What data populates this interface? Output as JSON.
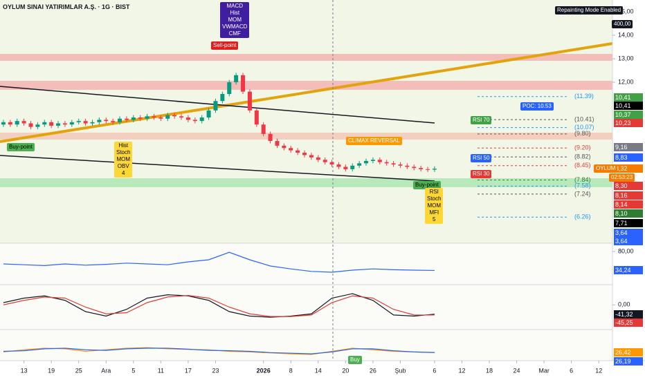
{
  "chart_data": [
    {
      "type": "candlestick",
      "title": "OYLUM SINAI YATIRIMLAR A.Ş. · 1G · BIST",
      "xlim": [
        -0.5,
        89
      ],
      "ylim": [
        5.15,
        15.5
      ],
      "xticks": [
        {
          "value": 3,
          "label": "13"
        },
        {
          "value": 7,
          "label": "19"
        },
        {
          "value": 11,
          "label": "25"
        },
        {
          "value": 15,
          "label": "Ara"
        },
        {
          "value": 19,
          "label": "5"
        },
        {
          "value": 23,
          "label": "11"
        },
        {
          "value": 27,
          "label": "17"
        },
        {
          "value": 31,
          "label": "23"
        },
        {
          "value": 38,
          "label": "2026"
        },
        {
          "value": 42,
          "label": "8"
        },
        {
          "value": 46,
          "label": "14"
        },
        {
          "value": 50,
          "label": "20"
        },
        {
          "value": 54,
          "label": "26"
        },
        {
          "value": 58,
          "label": "Şub"
        },
        {
          "value": 63,
          "label": "6"
        },
        {
          "value": 67,
          "label": "12"
        },
        {
          "value": 71,
          "label": "18"
        },
        {
          "value": 75,
          "label": "24"
        },
        {
          "value": 79,
          "label": "Mar"
        },
        {
          "value": 83,
          "label": "6"
        },
        {
          "value": 87,
          "label": "12"
        }
      ],
      "yticks": [
        {
          "value": 15,
          "label": "15,00"
        },
        {
          "value": 14,
          "label": "14,00"
        },
        {
          "value": 13,
          "label": "13,00"
        },
        {
          "value": 12,
          "label": "12,00"
        }
      ],
      "grid": false,
      "up_color": "#089981",
      "down_color": "#f23645",
      "open": [
        10.2,
        10.3,
        10.2,
        10.35,
        10.25,
        10.1,
        10.2,
        10.3,
        10.15,
        10.25,
        10.2,
        10.3,
        10.35,
        10.25,
        10.3,
        10.4,
        10.35,
        10.3,
        10.45,
        10.4,
        10.5,
        10.45,
        10.55,
        10.5,
        10.45,
        10.6,
        10.55,
        10.5,
        10.4,
        10.35,
        10.5,
        10.8,
        11.2,
        11.5,
        12.0,
        12.3,
        11.6,
        10.8,
        10.2,
        9.8,
        9.5,
        9.3,
        9.2,
        9.1,
        9.0,
        8.9,
        8.8,
        8.7,
        8.6,
        8.5,
        8.4,
        8.3,
        8.45,
        8.55,
        8.65,
        8.7,
        8.6,
        8.55,
        8.5,
        8.45,
        8.4,
        8.35,
        8.3,
        8.28
      ],
      "high": [
        10.4,
        10.4,
        10.45,
        10.45,
        10.35,
        10.3,
        10.4,
        10.4,
        10.35,
        10.35,
        10.4,
        10.45,
        10.45,
        10.4,
        10.5,
        10.5,
        10.45,
        10.55,
        10.55,
        10.6,
        10.6,
        10.65,
        10.65,
        10.6,
        10.7,
        10.7,
        10.65,
        10.6,
        10.5,
        10.6,
        10.9,
        11.3,
        11.6,
        12.1,
        12.4,
        12.4,
        11.7,
        10.9,
        10.3,
        9.9,
        9.6,
        9.4,
        9.3,
        9.2,
        9.1,
        9.0,
        8.9,
        8.8,
        8.7,
        8.6,
        8.5,
        8.55,
        8.65,
        8.75,
        8.8,
        8.8,
        8.7,
        8.65,
        8.6,
        8.55,
        8.5,
        8.45,
        8.4,
        8.42
      ],
      "low": [
        10.1,
        10.1,
        10.1,
        10.15,
        10.0,
        10.0,
        10.1,
        10.05,
        10.05,
        10.1,
        10.1,
        10.2,
        10.15,
        10.15,
        10.2,
        10.25,
        10.2,
        10.2,
        10.3,
        10.3,
        10.35,
        10.35,
        10.4,
        10.35,
        10.35,
        10.45,
        10.4,
        10.3,
        10.25,
        10.25,
        10.4,
        10.7,
        11.1,
        11.4,
        11.9,
        11.5,
        10.7,
        10.1,
        9.7,
        9.4,
        9.2,
        9.1,
        9.0,
        8.9,
        8.8,
        8.7,
        8.6,
        8.5,
        8.4,
        8.3,
        8.2,
        8.2,
        8.35,
        8.45,
        8.55,
        8.5,
        8.45,
        8.4,
        8.35,
        8.3,
        8.25,
        8.2,
        8.18,
        8.18
      ],
      "close": [
        10.3,
        10.2,
        10.35,
        10.25,
        10.1,
        10.2,
        10.3,
        10.15,
        10.25,
        10.2,
        10.3,
        10.35,
        10.25,
        10.3,
        10.4,
        10.35,
        10.3,
        10.45,
        10.4,
        10.5,
        10.45,
        10.55,
        10.5,
        10.45,
        10.6,
        10.55,
        10.5,
        10.4,
        10.35,
        10.5,
        10.8,
        11.2,
        11.5,
        12.0,
        12.3,
        11.6,
        10.8,
        10.2,
        9.8,
        9.5,
        9.3,
        9.2,
        9.1,
        9.0,
        8.9,
        8.8,
        8.7,
        8.6,
        8.5,
        8.4,
        8.3,
        8.45,
        8.55,
        8.65,
        8.7,
        8.6,
        8.55,
        8.5,
        8.45,
        8.4,
        8.35,
        8.3,
        8.28,
        8.32
      ],
      "levels": [
        {
          "value": 11.39,
          "label": "(11.39)",
          "color": "#2196f3"
        },
        {
          "value": 10.41,
          "label": "(10.41)",
          "color": "#555555"
        },
        {
          "value": 10.07,
          "label": "(10.07)",
          "color": "#2196f3"
        },
        {
          "value": 9.8,
          "label": "(9.80)",
          "color": "#555555"
        },
        {
          "value": 9.2,
          "label": "(9.20)",
          "color": "#e53935"
        },
        {
          "value": 8.82,
          "label": "(8.82)",
          "color": "#555555"
        },
        {
          "value": 8.45,
          "label": "(8.45)",
          "color": "#e53935"
        },
        {
          "value": 7.84,
          "label": "(7.84)",
          "color": "#2e7d32"
        },
        {
          "value": 7.58,
          "label": "(7.58)",
          "color": "#2196f3"
        },
        {
          "value": 7.24,
          "label": "(7.24)",
          "color": "#555555"
        },
        {
          "value": 6.26,
          "label": "(6.26)",
          "color": "#2196f3"
        }
      ],
      "price_labels": [
        {
          "value": 10.41,
          "label": "10,41",
          "color": "#43a047"
        },
        {
          "value": 10.41,
          "label": "10,41",
          "color": "#000000"
        },
        {
          "value": 10.37,
          "label": "10,37",
          "color": "#43a047"
        },
        {
          "value": 10.23,
          "label": "10,23",
          "color": "#e53935"
        },
        {
          "value": 9.16,
          "label": "9,16",
          "color": "#787b86"
        },
        {
          "value": 8.83,
          "label": "8,83",
          "color": "#2962ff"
        },
        {
          "value": 8.32,
          "label": "8,32",
          "color": "#f57c00"
        },
        {
          "value": 8.3,
          "label": "8,30",
          "color": "#e53935"
        },
        {
          "value": 8.16,
          "label": "8,16",
          "color": "#e53935"
        },
        {
          "value": 8.14,
          "label": "8,14",
          "color": "#e53935"
        },
        {
          "value": 8.1,
          "label": "8,10",
          "color": "#2e7d32"
        },
        {
          "value": 7.71,
          "label": "7,71",
          "color": "#000000"
        },
        {
          "value": 3.64,
          "label": "3,64",
          "color": "#2962ff"
        },
        {
          "value": 3.64,
          "label": "3,64",
          "color": "#2962ff"
        }
      ],
      "annotations": [
        {
          "lines": [
            "Repainting Mode Enabled"
          ],
          "bg": "#131722",
          "fg": "#ffffff"
        },
        {
          "lines": [
            "400,00"
          ],
          "bg": "#131722",
          "fg": "#ffffff"
        },
        {
          "lines": [
            "MACD",
            "Hist",
            "MOM",
            "VWMACD",
            "CMF"
          ],
          "bg": "#3f1fa0",
          "fg": "#ffffff"
        },
        {
          "lines": [
            "Sell-point"
          ],
          "bg": "#e01e1e",
          "fg": "#ffffff"
        },
        {
          "lines": [
            "Buy-point"
          ],
          "bg": "#4caf50",
          "fg": "#000000"
        },
        {
          "lines": [
            "Hist",
            "Stoch",
            "MOM",
            "OBV",
            "4"
          ],
          "bg": "#fdd835",
          "fg": "#000000"
        },
        {
          "lines": [
            "CLIMAX REVERSAL"
          ],
          "bg": "#ff9800",
          "fg": "#ffffff"
        },
        {
          "lines": [
            "RSI 70"
          ],
          "bg": "#43a047",
          "fg": "#ffffff"
        },
        {
          "lines": [
            "RSI 50"
          ],
          "bg": "#2962ff",
          "fg": "#ffffff"
        },
        {
          "lines": [
            "RSI 30"
          ],
          "bg": "#e53935",
          "fg": "#ffffff"
        },
        {
          "lines": [
            "POC: 10.53"
          ],
          "bg": "#2962ff",
          "fg": "#ffffff"
        },
        {
          "lines": [
            "Buy-point"
          ],
          "bg": "#4caf50",
          "fg": "#000000"
        },
        {
          "lines": [
            "RSI",
            "Stoch",
            "MOM",
            "MFI",
            "5"
          ],
          "bg": "#fdd835",
          "fg": "#000000"
        },
        {
          "lines": [
            "OYLUM"
          ],
          "bg": "#f57c00",
          "fg": "#ffffff"
        },
        {
          "lines": [
            "02:53:23"
          ],
          "bg": "#f57c00",
          "fg": "#ffffff"
        },
        {
          "lines": [
            "Buy"
          ],
          "bg": "#4caf50",
          "fg": "#ffffff"
        }
      ]
    },
    {
      "type": "line",
      "xlim": [
        -0.5,
        89
      ],
      "ylim": [
        0,
        100
      ],
      "yticks": [
        {
          "value": 80,
          "label": "80,00"
        }
      ],
      "x": [
        0,
        3,
        6,
        9,
        12,
        15,
        18,
        21,
        24,
        27,
        30,
        33,
        36,
        39,
        42,
        45,
        48,
        51,
        54,
        57,
        60,
        63
      ],
      "series": [
        {
          "name": "RSI",
          "color": "#2962ff",
          "values": [
            50,
            48,
            46,
            50,
            47,
            49,
            52,
            50,
            48,
            55,
            60,
            78,
            60,
            45,
            38,
            32,
            30,
            35,
            38,
            36,
            35,
            34.24
          ]
        }
      ],
      "price_labels": [
        {
          "value": 34.24,
          "label": "34,24",
          "color": "#2962ff"
        }
      ]
    },
    {
      "type": "line",
      "xlim": [
        -0.5,
        89
      ],
      "ylim": [
        -110,
        90
      ],
      "yticks": [
        {
          "value": 0,
          "label": "0,00"
        }
      ],
      "x": [
        0,
        3,
        6,
        9,
        12,
        15,
        18,
        21,
        24,
        27,
        30,
        33,
        36,
        39,
        42,
        45,
        48,
        51,
        54,
        57,
        60,
        63
      ],
      "series": [
        {
          "name": "MACD",
          "color": "#131722",
          "values": [
            10,
            30,
            40,
            20,
            -30,
            -50,
            -20,
            30,
            45,
            40,
            20,
            -30,
            -50,
            -55,
            -50,
            -40,
            30,
            50,
            20,
            -45,
            -50,
            -41.32
          ]
        },
        {
          "name": "Signal",
          "color": "#e53935",
          "values": [
            0,
            20,
            35,
            30,
            -10,
            -40,
            -35,
            10,
            35,
            42,
            30,
            -10,
            -40,
            -52,
            -52,
            -45,
            10,
            40,
            30,
            -20,
            -45,
            -45.25
          ]
        }
      ],
      "price_labels": [
        {
          "value": -41.32,
          "label": "-41,32",
          "color": "#131722"
        },
        {
          "value": -45.25,
          "label": "-45,25",
          "color": "#e53935"
        }
      ]
    },
    {
      "type": "line",
      "xlim": [
        -0.5,
        89
      ],
      "ylim": [
        0,
        100
      ],
      "x": [
        0,
        3,
        6,
        9,
        12,
        15,
        18,
        21,
        24,
        27,
        30,
        33,
        36,
        39,
        42,
        45,
        48,
        51,
        54,
        57,
        60,
        63
      ],
      "series": [
        {
          "name": "K",
          "color": "#ff9800",
          "values": [
            28,
            35,
            40,
            38,
            30,
            35,
            40,
            42,
            38,
            36,
            35,
            30,
            28,
            25,
            22,
            20,
            30,
            40,
            35,
            30,
            28,
            26.42
          ]
        },
        {
          "name": "D",
          "color": "#2962ff",
          "values": [
            30,
            32,
            38,
            40,
            35,
            33,
            38,
            40,
            40,
            37,
            33,
            32,
            30,
            26,
            24,
            22,
            28,
            38,
            38,
            32,
            28,
            26.19
          ]
        }
      ],
      "price_labels": [
        {
          "value": 26.42,
          "label": "26,42",
          "color": "#ff9800"
        },
        {
          "value": 26.19,
          "label": "26,19",
          "color": "#2962ff"
        }
      ]
    }
  ]
}
